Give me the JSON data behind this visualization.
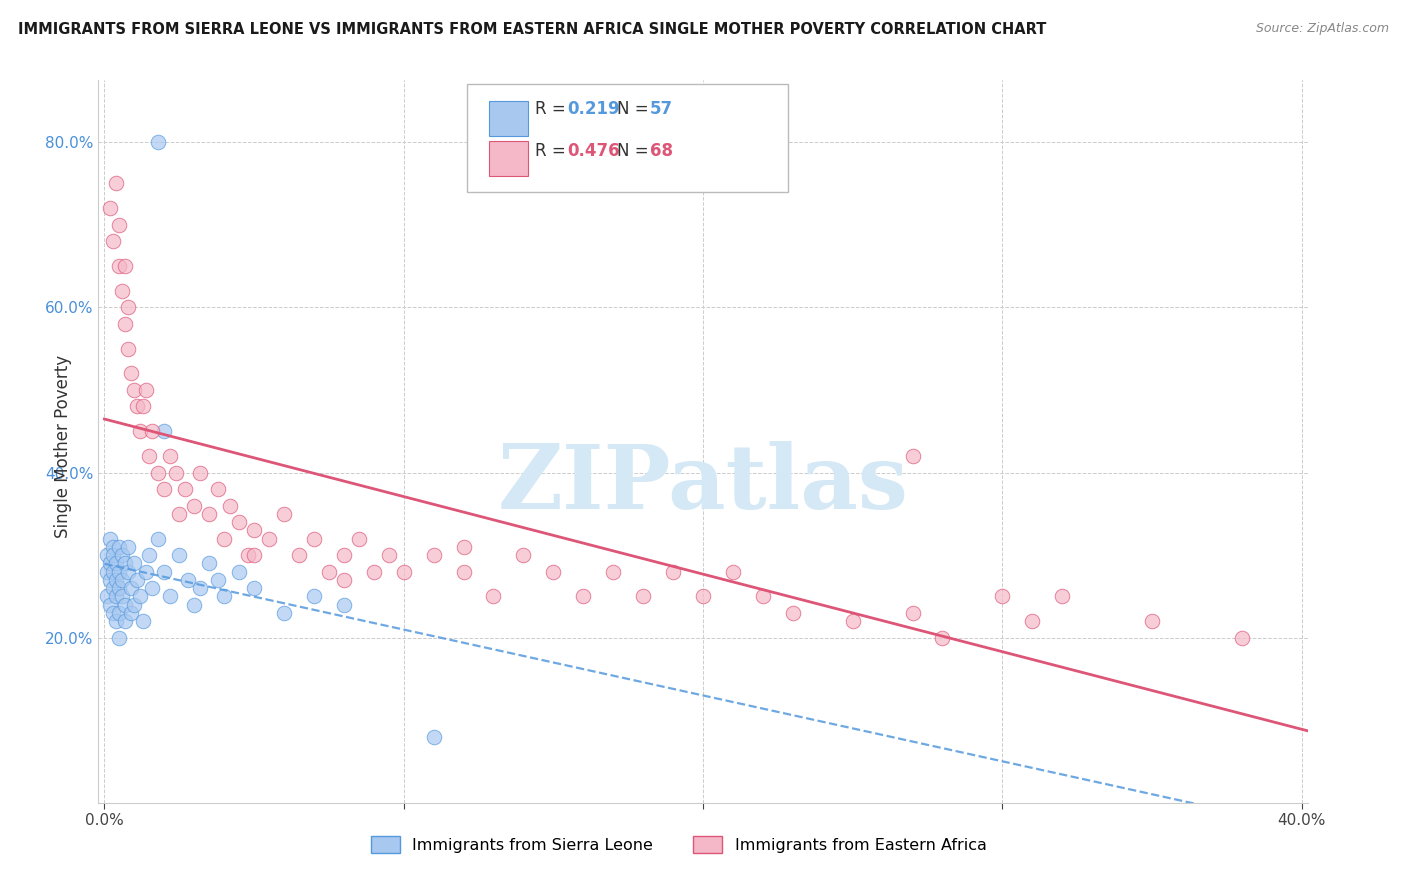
{
  "title": "IMMIGRANTS FROM SIERRA LEONE VS IMMIGRANTS FROM EASTERN AFRICA SINGLE MOTHER POVERTY CORRELATION CHART",
  "source": "Source: ZipAtlas.com",
  "ylabel": "Single Mother Poverty",
  "xlim": [
    -0.002,
    0.402
  ],
  "ylim": [
    0.0,
    0.875
  ],
  "xticks": [
    0.0,
    0.1,
    0.2,
    0.3,
    0.4
  ],
  "xtick_labels": [
    "0.0%",
    "",
    "",
    "",
    "40.0%"
  ],
  "yticks": [
    0.2,
    0.4,
    0.6,
    0.8
  ],
  "ytick_labels": [
    "20.0%",
    "40.0%",
    "60.0%",
    "80.0%"
  ],
  "R_sierra": 0.219,
  "N_sierra": 57,
  "R_eastern": 0.476,
  "N_eastern": 68,
  "color_sierra": "#a8c8f0",
  "color_eastern": "#f5b8c8",
  "trendline_sierra_color": "#5599dd",
  "trendline_eastern_color": "#dd5577",
  "watermark_color": "#d5e8f5",
  "sl_x": [
    0.001,
    0.001,
    0.001,
    0.002,
    0.002,
    0.002,
    0.002,
    0.003,
    0.003,
    0.003,
    0.003,
    0.003,
    0.004,
    0.004,
    0.004,
    0.004,
    0.005,
    0.005,
    0.005,
    0.005,
    0.005,
    0.006,
    0.006,
    0.006,
    0.007,
    0.007,
    0.007,
    0.008,
    0.008,
    0.009,
    0.009,
    0.01,
    0.01,
    0.011,
    0.012,
    0.013,
    0.014,
    0.015,
    0.016,
    0.018,
    0.02,
    0.022,
    0.025,
    0.028,
    0.03,
    0.032,
    0.035,
    0.038,
    0.04,
    0.045,
    0.05,
    0.06,
    0.07,
    0.08,
    0.018,
    0.11,
    0.02
  ],
  "sl_y": [
    0.28,
    0.3,
    0.25,
    0.32,
    0.27,
    0.29,
    0.24,
    0.31,
    0.26,
    0.28,
    0.23,
    0.3,
    0.27,
    0.25,
    0.29,
    0.22,
    0.31,
    0.26,
    0.28,
    0.23,
    0.2,
    0.3,
    0.25,
    0.27,
    0.29,
    0.24,
    0.22,
    0.28,
    0.31,
    0.26,
    0.23,
    0.29,
    0.24,
    0.27,
    0.25,
    0.22,
    0.28,
    0.3,
    0.26,
    0.32,
    0.28,
    0.25,
    0.3,
    0.27,
    0.24,
    0.26,
    0.29,
    0.27,
    0.25,
    0.28,
    0.26,
    0.23,
    0.25,
    0.24,
    0.8,
    0.08,
    0.45
  ],
  "ea_x": [
    0.002,
    0.003,
    0.004,
    0.005,
    0.005,
    0.006,
    0.007,
    0.007,
    0.008,
    0.008,
    0.009,
    0.01,
    0.011,
    0.012,
    0.013,
    0.014,
    0.015,
    0.016,
    0.018,
    0.02,
    0.022,
    0.024,
    0.025,
    0.027,
    0.03,
    0.032,
    0.035,
    0.038,
    0.04,
    0.042,
    0.045,
    0.048,
    0.05,
    0.055,
    0.06,
    0.065,
    0.07,
    0.075,
    0.08,
    0.085,
    0.09,
    0.095,
    0.1,
    0.11,
    0.12,
    0.13,
    0.14,
    0.15,
    0.16,
    0.17,
    0.18,
    0.19,
    0.2,
    0.21,
    0.22,
    0.23,
    0.25,
    0.27,
    0.28,
    0.3,
    0.31,
    0.32,
    0.35,
    0.38,
    0.27,
    0.05,
    0.08,
    0.12
  ],
  "ea_y": [
    0.72,
    0.68,
    0.75,
    0.65,
    0.7,
    0.62,
    0.58,
    0.65,
    0.55,
    0.6,
    0.52,
    0.5,
    0.48,
    0.45,
    0.48,
    0.5,
    0.42,
    0.45,
    0.4,
    0.38,
    0.42,
    0.4,
    0.35,
    0.38,
    0.36,
    0.4,
    0.35,
    0.38,
    0.32,
    0.36,
    0.34,
    0.3,
    0.33,
    0.32,
    0.35,
    0.3,
    0.32,
    0.28,
    0.3,
    0.32,
    0.28,
    0.3,
    0.28,
    0.3,
    0.28,
    0.25,
    0.3,
    0.28,
    0.25,
    0.28,
    0.25,
    0.28,
    0.25,
    0.28,
    0.25,
    0.23,
    0.22,
    0.23,
    0.2,
    0.25,
    0.22,
    0.25,
    0.22,
    0.2,
    0.42,
    0.3,
    0.27,
    0.31
  ]
}
